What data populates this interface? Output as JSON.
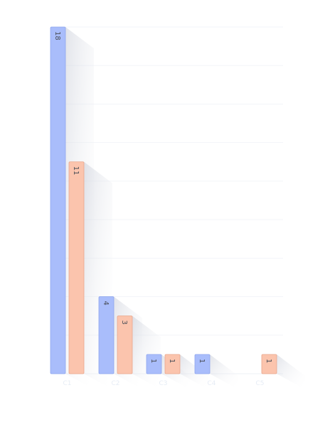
{
  "chart_data": {
    "type": "bar",
    "categories": [
      "C1",
      "C2",
      "C3",
      "C4",
      "C5"
    ],
    "series": [
      {
        "color": "#a9bdfb",
        "values": [
          18,
          4,
          1,
          1,
          0
        ]
      },
      {
        "color": "#fbc4ad",
        "values": [
          11,
          3,
          1,
          0,
          1
        ]
      }
    ],
    "ylim": [
      0,
      18
    ],
    "grid": true,
    "legend": "none",
    "bar_labels": true,
    "orientation_of_value_labels": "rotated-90"
  }
}
